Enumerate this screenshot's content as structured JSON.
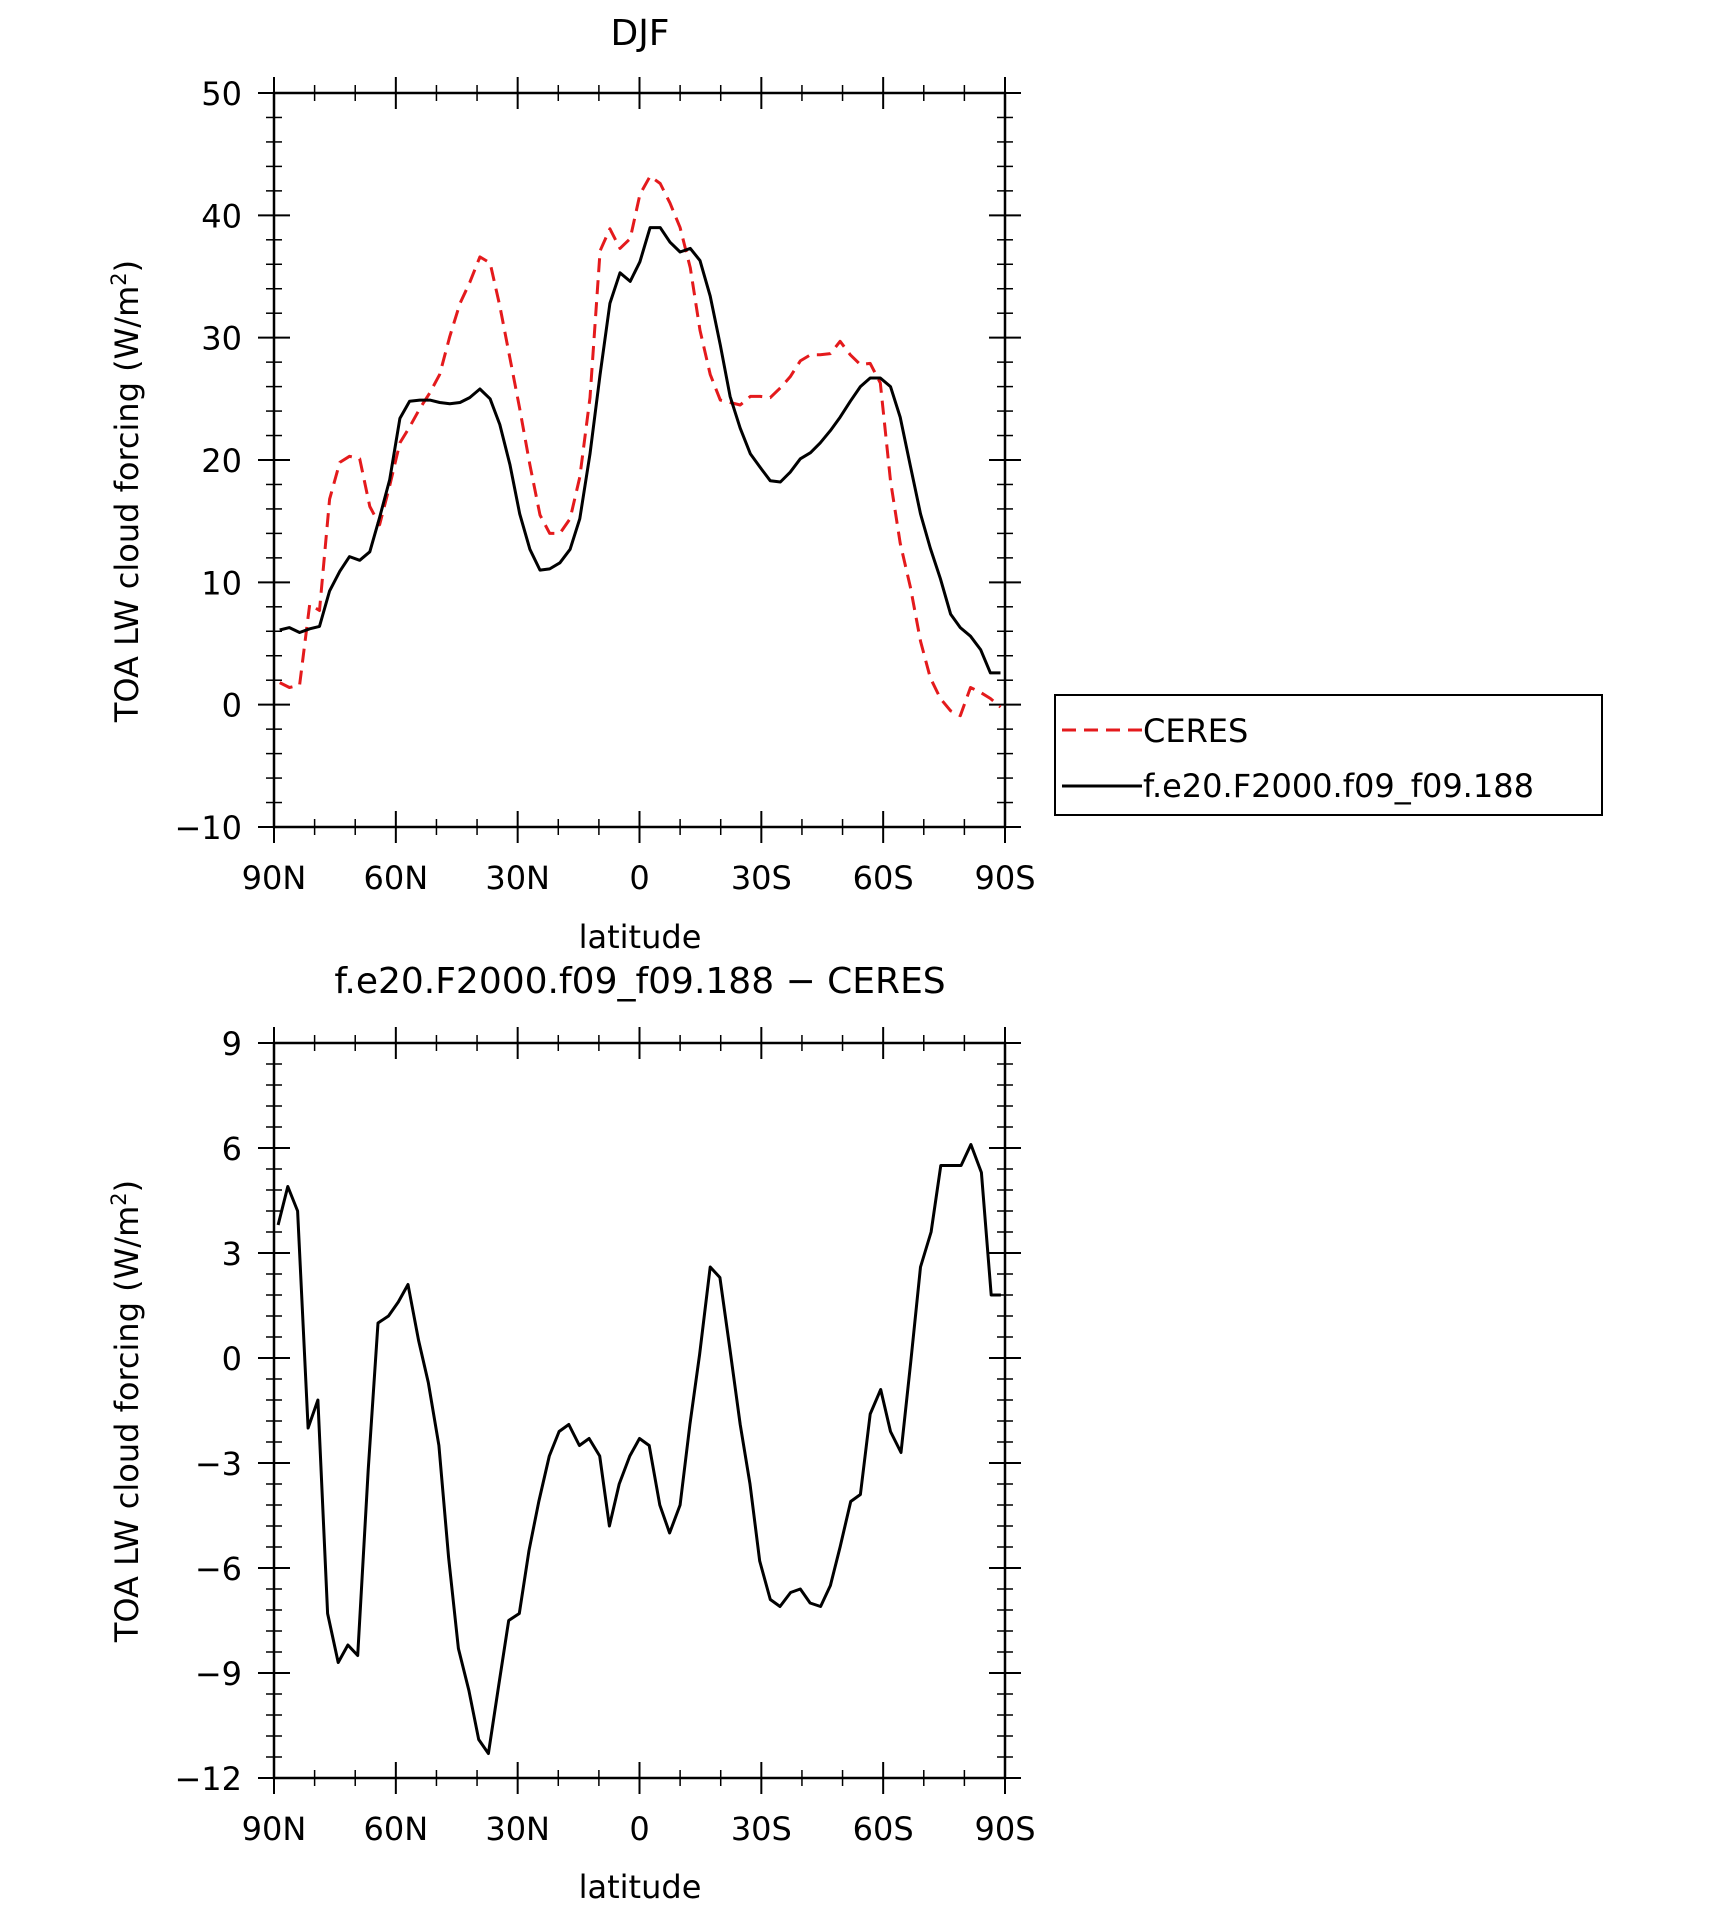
{
  "chart_data": [
    {
      "type": "line",
      "title": "DJF",
      "xlabel": "latitude",
      "ylabel": "TOA LW cloud forcing (W/m",
      "ylabel_sup": "2",
      "ylabel_end": ")",
      "xlim": [
        90,
        -90
      ],
      "ylim": [
        -10,
        50
      ],
      "x_ticks": [
        90,
        60,
        30,
        0,
        -30,
        -60,
        -90
      ],
      "x_tick_labels": [
        "90N",
        "60N",
        "30N",
        "0",
        "30S",
        "60S",
        "90S"
      ],
      "y_ticks": [
        -10,
        0,
        10,
        20,
        30,
        40,
        50
      ],
      "y_tick_labels": [
        "−10",
        "0",
        "10",
        "20",
        "30",
        "40",
        "50"
      ],
      "grid": false,
      "legend": "right",
      "series": [
        {
          "name": "CERES",
          "color": "#e41a1c",
          "dash": "dashed",
          "x": [
            88.6,
            86.2,
            83.7,
            81.2,
            78.8,
            76.3,
            73.8,
            71.4,
            68.9,
            66.4,
            64.0,
            61.5,
            59.0,
            56.6,
            54.1,
            51.6,
            49.2,
            46.7,
            44.2,
            41.8,
            39.3,
            36.8,
            34.4,
            31.9,
            29.5,
            27.0,
            24.5,
            22.1,
            19.6,
            17.1,
            14.7,
            12.2,
            9.7,
            7.3,
            4.8,
            2.3,
            -0.1,
            -2.6,
            -5.1,
            -7.5,
            -10.0,
            -12.5,
            -14.9,
            -17.4,
            -19.9,
            -22.3,
            -24.8,
            -27.3,
            -29.7,
            -32.2,
            -34.7,
            -37.1,
            -39.6,
            -42.1,
            -44.5,
            -47.0,
            -49.4,
            -51.9,
            -54.4,
            -56.8,
            -59.3,
            -61.8,
            -64.2,
            -66.7,
            -69.2,
            -71.6,
            -74.1,
            -76.6,
            -79.0,
            -81.5,
            -84.0,
            -86.4,
            -88.9
          ],
          "y": [
            1.8,
            1.4,
            1.6,
            8.2,
            7.7,
            16.8,
            19.8,
            20.3,
            20.1,
            16.2,
            14.7,
            17.9,
            21.4,
            22.7,
            24.2,
            25.5,
            27.0,
            30.1,
            32.8,
            34.5,
            36.6,
            36.1,
            32.6,
            28.3,
            24.2,
            19.6,
            15.5,
            14.0,
            14.0,
            15.2,
            18.6,
            25.1,
            37.1,
            38.9,
            37.3,
            38.1,
            41.7,
            43.2,
            42.6,
            41.0,
            39.0,
            35.7,
            30.6,
            27.0,
            24.9,
            24.7,
            24.5,
            25.2,
            25.2,
            25.1,
            25.9,
            26.8,
            28.1,
            28.6,
            28.6,
            28.7,
            29.7,
            28.6,
            27.8,
            27.9,
            26.3,
            18.3,
            13.2,
            9.6,
            5.2,
            2.2,
            0.5,
            -0.5,
            -0.9,
            1.4,
            1.0,
            0.5,
            -0.2
          ]
        },
        {
          "name": "f.e20.F2000.f09_f09.188",
          "color": "#000000",
          "dash": "solid",
          "x": [
            88.6,
            86.2,
            83.7,
            81.2,
            78.8,
            76.3,
            73.8,
            71.4,
            68.9,
            66.4,
            64.0,
            61.5,
            59.0,
            56.6,
            54.1,
            51.6,
            49.2,
            46.7,
            44.2,
            41.8,
            39.3,
            36.8,
            34.4,
            31.9,
            29.5,
            27.0,
            24.5,
            22.1,
            19.6,
            17.1,
            14.7,
            12.2,
            9.7,
            7.3,
            4.8,
            2.3,
            -0.1,
            -2.6,
            -5.1,
            -7.5,
            -10.0,
            -12.5,
            -14.9,
            -17.4,
            -19.9,
            -22.3,
            -24.8,
            -27.3,
            -29.7,
            -32.2,
            -34.7,
            -37.1,
            -39.6,
            -42.1,
            -44.5,
            -47.0,
            -49.4,
            -51.9,
            -54.4,
            -56.8,
            -59.3,
            -61.8,
            -64.2,
            -66.7,
            -69.2,
            -71.6,
            -74.1,
            -76.6,
            -79.0,
            -81.5,
            -84.0,
            -86.4,
            -88.9
          ],
          "y": [
            6.1,
            6.3,
            5.9,
            6.2,
            6.4,
            9.3,
            10.9,
            12.1,
            11.8,
            12.5,
            15.3,
            18.4,
            23.4,
            24.8,
            24.9,
            24.9,
            24.7,
            24.6,
            24.7,
            25.1,
            25.8,
            25.0,
            22.9,
            19.6,
            15.6,
            12.7,
            11.0,
            11.1,
            11.6,
            12.7,
            15.2,
            20.5,
            27.0,
            32.8,
            35.3,
            34.6,
            36.2,
            39.0,
            39.0,
            37.8,
            37.0,
            37.3,
            36.3,
            33.4,
            29.4,
            25.2,
            22.6,
            20.5,
            19.4,
            18.3,
            18.2,
            19.0,
            20.1,
            20.6,
            21.4,
            22.4,
            23.5,
            24.8,
            26.0,
            26.7,
            26.7,
            26.0,
            23.5,
            19.5,
            15.6,
            12.8,
            10.3,
            7.4,
            6.3,
            5.6,
            4.5,
            2.6,
            2.6
          ]
        }
      ]
    },
    {
      "type": "line",
      "title": "f.e20.F2000.f09_f09.188 − CERES",
      "xlabel": "latitude",
      "ylabel": "TOA LW cloud forcing (W/m",
      "ylabel_sup": "2",
      "ylabel_end": ")",
      "xlim": [
        90,
        -90
      ],
      "ylim": [
        -12,
        9
      ],
      "x_ticks": [
        90,
        60,
        30,
        0,
        -30,
        -60,
        -90
      ],
      "x_tick_labels": [
        "90N",
        "60N",
        "30N",
        "0",
        "30S",
        "60S",
        "90S"
      ],
      "y_ticks": [
        -12,
        -9,
        -6,
        -3,
        0,
        3,
        6,
        9
      ],
      "y_tick_labels": [
        "−12",
        "−9",
        "−6",
        "−3",
        "0",
        "3",
        "6",
        "9"
      ],
      "grid": false,
      "series": [
        {
          "color": "#000000",
          "dash": "solid",
          "x": [
            89.0,
            86.6,
            84.2,
            81.6,
            79.2,
            76.8,
            74.2,
            71.8,
            69.4,
            66.8,
            64.4,
            61.8,
            59.4,
            57.0,
            54.4,
            52.0,
            49.4,
            47.0,
            44.6,
            42.0,
            39.6,
            37.2,
            34.6,
            32.2,
            29.6,
            27.2,
            24.8,
            22.2,
            19.8,
            17.4,
            14.8,
            12.4,
            9.8,
            7.4,
            5.0,
            2.4,
            0.0,
            -2.4,
            -5.0,
            -7.4,
            -10.0,
            -12.4,
            -14.8,
            -17.4,
            -19.8,
            -22.2,
            -24.8,
            -27.2,
            -29.6,
            -32.2,
            -34.6,
            -37.2,
            -39.6,
            -42.0,
            -44.6,
            -47.0,
            -49.4,
            -52.0,
            -54.4,
            -56.8,
            -59.4,
            -61.8,
            -64.4,
            -66.8,
            -69.2,
            -71.8,
            -74.2,
            -76.6,
            -79.2,
            -81.6,
            -84.2,
            -86.6,
            -89.0
          ],
          "y": [
            3.8,
            4.9,
            4.2,
            -2.0,
            -1.2,
            -7.3,
            -8.7,
            -8.2,
            -8.5,
            -3.2,
            1.0,
            1.2,
            1.6,
            2.1,
            0.5,
            -0.7,
            -2.5,
            -5.7,
            -8.3,
            -9.5,
            -10.9,
            -11.3,
            -9.3,
            -7.5,
            -7.3,
            -5.5,
            -4.1,
            -2.8,
            -2.1,
            -1.9,
            -2.5,
            -2.3,
            -2.8,
            -4.8,
            -3.6,
            -2.8,
            -2.3,
            -2.5,
            -4.2,
            -5.0,
            -4.2,
            -1.9,
            0.1,
            2.6,
            2.3,
            0.3,
            -1.9,
            -3.6,
            -5.8,
            -6.9,
            -7.1,
            -6.7,
            -6.6,
            -7.0,
            -7.1,
            -6.5,
            -5.4,
            -4.1,
            -3.9,
            -1.6,
            -0.9,
            -2.1,
            -2.7,
            -0.1,
            2.6,
            3.6,
            5.5,
            5.5,
            5.5,
            6.1,
            5.3,
            1.8,
            1.8
          ]
        }
      ]
    }
  ]
}
